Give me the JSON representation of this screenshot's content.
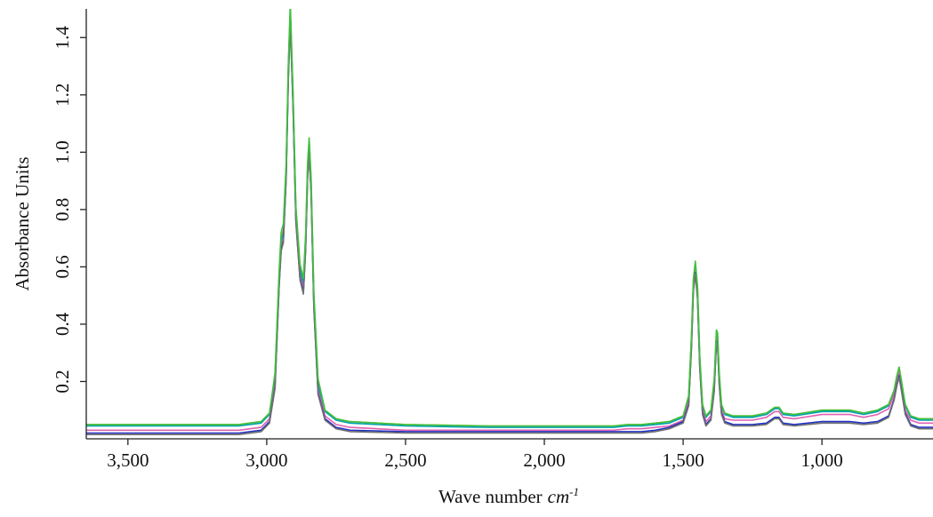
{
  "chart_data": {
    "type": "line",
    "title": "",
    "xlabel": "Wave number",
    "xlabel_unit": "cm",
    "xlabel_unit_exp": "-1",
    "ylabel": "Absorbance Units",
    "xlim": [
      3650,
      600
    ],
    "ylim": [
      0,
      1.5
    ],
    "x_reversed": true,
    "grid": false,
    "x_ticks": [
      3500,
      3000,
      2500,
      2000,
      1500,
      1000
    ],
    "x_tick_labels": [
      "3,500",
      "3,000",
      "2,500",
      "2,000",
      "1,500",
      "1,000"
    ],
    "y_ticks": [
      0.2,
      0.4,
      0.6,
      0.8,
      1.0,
      1.2,
      1.4
    ],
    "y_tick_labels": [
      "0.2",
      "0.4",
      "0.6",
      "0.8",
      "1.0",
      "1.2",
      "1.4"
    ],
    "x": [
      3650,
      3300,
      3100,
      3020,
      2990,
      2970,
      2955,
      2948,
      2940,
      2930,
      2922,
      2915,
      2905,
      2895,
      2880,
      2868,
      2860,
      2853,
      2847,
      2840,
      2830,
      2815,
      2790,
      2750,
      2700,
      2500,
      2200,
      1900,
      1750,
      1700,
      1650,
      1600,
      1550,
      1500,
      1480,
      1470,
      1463,
      1456,
      1448,
      1440,
      1430,
      1418,
      1400,
      1388,
      1380,
      1376,
      1370,
      1362,
      1350,
      1320,
      1250,
      1200,
      1170,
      1155,
      1140,
      1100,
      1000,
      900,
      850,
      800,
      780,
      760,
      740,
      730,
      722,
      715,
      700,
      680,
      650,
      600
    ],
    "series": [
      {
        "color": "#c8b400",
        "values": [
          0.05,
          0.05,
          0.05,
          0.06,
          0.09,
          0.22,
          0.58,
          0.7,
          0.73,
          0.95,
          1.3,
          1.5,
          1.2,
          0.8,
          0.6,
          0.55,
          0.7,
          0.95,
          1.04,
          0.9,
          0.5,
          0.2,
          0.1,
          0.07,
          0.06,
          0.05,
          0.045,
          0.045,
          0.045,
          0.05,
          0.05,
          0.055,
          0.06,
          0.08,
          0.15,
          0.35,
          0.55,
          0.61,
          0.52,
          0.28,
          0.12,
          0.08,
          0.1,
          0.2,
          0.37,
          0.36,
          0.22,
          0.12,
          0.09,
          0.08,
          0.08,
          0.09,
          0.11,
          0.11,
          0.09,
          0.085,
          0.1,
          0.1,
          0.09,
          0.1,
          0.11,
          0.12,
          0.17,
          0.22,
          0.25,
          0.21,
          0.12,
          0.08,
          0.07,
          0.07
        ]
      },
      {
        "color": "#00a0b0",
        "values": [
          0.045,
          0.045,
          0.045,
          0.055,
          0.085,
          0.21,
          0.57,
          0.69,
          0.72,
          0.94,
          1.29,
          1.49,
          1.19,
          0.79,
          0.59,
          0.54,
          0.69,
          0.94,
          1.03,
          0.89,
          0.49,
          0.19,
          0.095,
          0.065,
          0.055,
          0.045,
          0.04,
          0.04,
          0.04,
          0.045,
          0.045,
          0.05,
          0.055,
          0.075,
          0.145,
          0.34,
          0.54,
          0.6,
          0.51,
          0.27,
          0.115,
          0.075,
          0.095,
          0.195,
          0.36,
          0.35,
          0.21,
          0.115,
          0.085,
          0.075,
          0.075,
          0.085,
          0.105,
          0.105,
          0.085,
          0.08,
          0.095,
          0.095,
          0.085,
          0.095,
          0.105,
          0.115,
          0.165,
          0.215,
          0.245,
          0.205,
          0.115,
          0.075,
          0.065,
          0.065
        ]
      },
      {
        "color": "#e060b0",
        "values": [
          0.03,
          0.03,
          0.03,
          0.04,
          0.07,
          0.19,
          0.55,
          0.67,
          0.7,
          0.92,
          1.27,
          1.47,
          1.17,
          0.77,
          0.57,
          0.52,
          0.67,
          0.92,
          1.01,
          0.87,
          0.47,
          0.17,
          0.08,
          0.05,
          0.04,
          0.03,
          0.03,
          0.03,
          0.03,
          0.035,
          0.035,
          0.04,
          0.045,
          0.065,
          0.13,
          0.33,
          0.53,
          0.59,
          0.5,
          0.26,
          0.1,
          0.06,
          0.08,
          0.18,
          0.35,
          0.34,
          0.2,
          0.1,
          0.07,
          0.065,
          0.065,
          0.075,
          0.095,
          0.095,
          0.075,
          0.07,
          0.085,
          0.085,
          0.075,
          0.085,
          0.095,
          0.105,
          0.155,
          0.2,
          0.235,
          0.195,
          0.1,
          0.065,
          0.055,
          0.055
        ]
      },
      {
        "color": "#2030c0",
        "values": [
          0.02,
          0.02,
          0.02,
          0.03,
          0.06,
          0.18,
          0.54,
          0.66,
          0.69,
          0.91,
          1.26,
          1.46,
          1.16,
          0.76,
          0.56,
          0.51,
          0.66,
          0.91,
          1.0,
          0.86,
          0.46,
          0.16,
          0.07,
          0.04,
          0.03,
          0.025,
          0.025,
          0.025,
          0.025,
          0.025,
          0.025,
          0.03,
          0.04,
          0.06,
          0.12,
          0.32,
          0.52,
          0.58,
          0.49,
          0.25,
          0.09,
          0.05,
          0.07,
          0.17,
          0.34,
          0.33,
          0.19,
          0.09,
          0.06,
          0.05,
          0.05,
          0.055,
          0.075,
          0.075,
          0.055,
          0.05,
          0.06,
          0.06,
          0.055,
          0.06,
          0.07,
          0.08,
          0.14,
          0.19,
          0.22,
          0.18,
          0.09,
          0.05,
          0.04,
          0.04
        ]
      },
      {
        "color": "#707070",
        "values": [
          0.015,
          0.015,
          0.015,
          0.025,
          0.055,
          0.175,
          0.535,
          0.655,
          0.685,
          0.905,
          1.255,
          1.455,
          1.155,
          0.755,
          0.555,
          0.505,
          0.655,
          0.905,
          0.995,
          0.855,
          0.455,
          0.155,
          0.065,
          0.035,
          0.025,
          0.02,
          0.02,
          0.02,
          0.02,
          0.02,
          0.02,
          0.025,
          0.035,
          0.055,
          0.115,
          0.315,
          0.515,
          0.575,
          0.485,
          0.245,
          0.085,
          0.045,
          0.065,
          0.165,
          0.335,
          0.325,
          0.185,
          0.085,
          0.055,
          0.045,
          0.045,
          0.05,
          0.07,
          0.07,
          0.05,
          0.045,
          0.055,
          0.055,
          0.05,
          0.055,
          0.065,
          0.075,
          0.135,
          0.185,
          0.215,
          0.175,
          0.085,
          0.045,
          0.035,
          0.035
        ]
      },
      {
        "color": "#40c040",
        "values": [
          0.05,
          0.05,
          0.05,
          0.06,
          0.09,
          0.23,
          0.59,
          0.72,
          0.75,
          0.96,
          1.31,
          1.52,
          1.21,
          0.81,
          0.61,
          0.56,
          0.71,
          0.96,
          1.05,
          0.91,
          0.51,
          0.21,
          0.1,
          0.07,
          0.06,
          0.05,
          0.045,
          0.045,
          0.045,
          0.05,
          0.05,
          0.055,
          0.06,
          0.08,
          0.15,
          0.36,
          0.56,
          0.62,
          0.53,
          0.29,
          0.12,
          0.08,
          0.1,
          0.21,
          0.38,
          0.37,
          0.23,
          0.12,
          0.09,
          0.08,
          0.08,
          0.09,
          0.11,
          0.11,
          0.09,
          0.085,
          0.1,
          0.1,
          0.09,
          0.1,
          0.11,
          0.12,
          0.17,
          0.22,
          0.25,
          0.21,
          0.12,
          0.08,
          0.07,
          0.07
        ]
      }
    ]
  }
}
